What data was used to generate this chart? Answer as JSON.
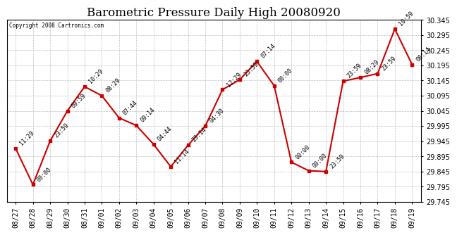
{
  "title": "Barometric Pressure Daily High 20080920",
  "copyright": "Copyright 2008 Cartronics.com",
  "x_labels": [
    "08/27",
    "08/28",
    "08/29",
    "08/30",
    "08/31",
    "09/01",
    "09/02",
    "09/03",
    "09/04",
    "09/05",
    "09/06",
    "09/07",
    "09/08",
    "09/09",
    "09/10",
    "09/11",
    "09/12",
    "09/13",
    "09/14",
    "09/15",
    "09/16",
    "09/17",
    "09/18",
    "09/19"
  ],
  "y_values": [
    29.921,
    29.802,
    29.946,
    30.045,
    30.125,
    30.095,
    30.022,
    29.997,
    29.935,
    29.861,
    29.932,
    29.995,
    30.115,
    30.148,
    30.208,
    30.128,
    29.876,
    29.848,
    29.845,
    30.143,
    30.155,
    30.168,
    30.315,
    30.198
  ],
  "point_labels": [
    "11:29",
    "00:00",
    "23:59",
    "09:59",
    "10:29",
    "08:29",
    "07:44",
    "09:14",
    "04:44",
    "11:14",
    "23:14",
    "04:30",
    "12:29",
    "23:59",
    "07:14",
    "00:00",
    "00:00",
    "00:00",
    "23:59",
    "23:59",
    "08:29",
    "23:59",
    "10:59",
    "08:14"
  ],
  "y_min": 29.745,
  "y_max": 30.345,
  "y_ticks": [
    29.745,
    29.795,
    29.845,
    29.895,
    29.945,
    29.995,
    30.045,
    30.095,
    30.145,
    30.195,
    30.245,
    30.295,
    30.345
  ],
  "line_color": "#cc0000",
  "marker_color": "#cc0000",
  "bg_color": "#ffffff",
  "grid_color": "#b0b0b0",
  "title_fontsize": 12,
  "label_fontsize": 7,
  "annot_fontsize": 6
}
